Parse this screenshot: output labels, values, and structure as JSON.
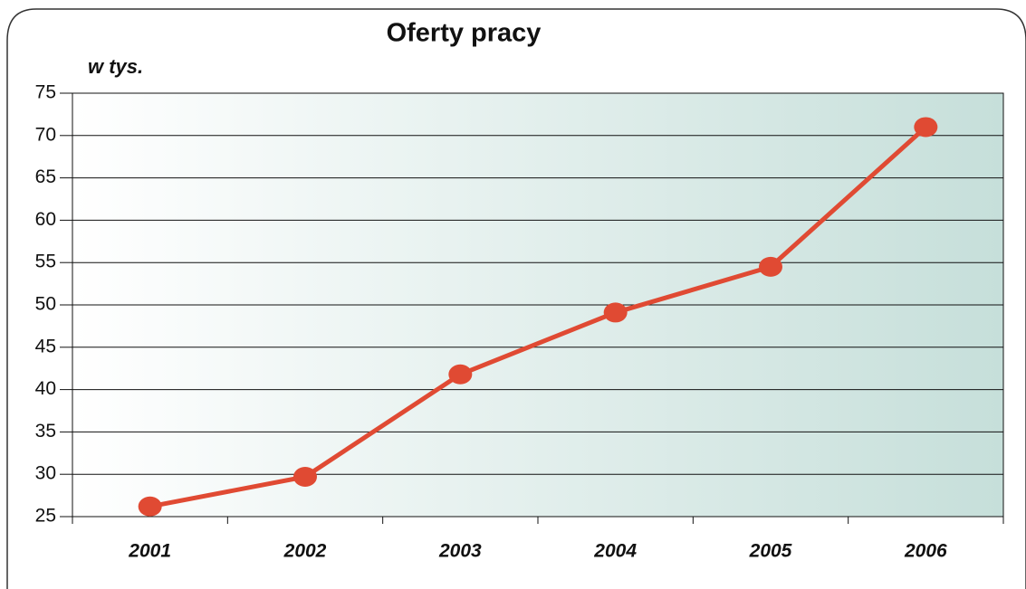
{
  "chart_data": {
    "type": "line",
    "title": "Oferty pracy",
    "y_label": "w tys.",
    "categories": [
      "2001",
      "2002",
      "2003",
      "2004",
      "2005",
      "2006"
    ],
    "series": [
      {
        "name": "Oferty pracy",
        "color": "#e04a33",
        "values": [
          26.2,
          29.7,
          41.8,
          49.1,
          54.5,
          71
        ]
      }
    ],
    "ylim": [
      25,
      75
    ],
    "yticks": [
      25,
      30,
      35,
      40,
      45,
      50,
      55,
      60,
      65,
      70,
      75
    ],
    "grid": true
  }
}
